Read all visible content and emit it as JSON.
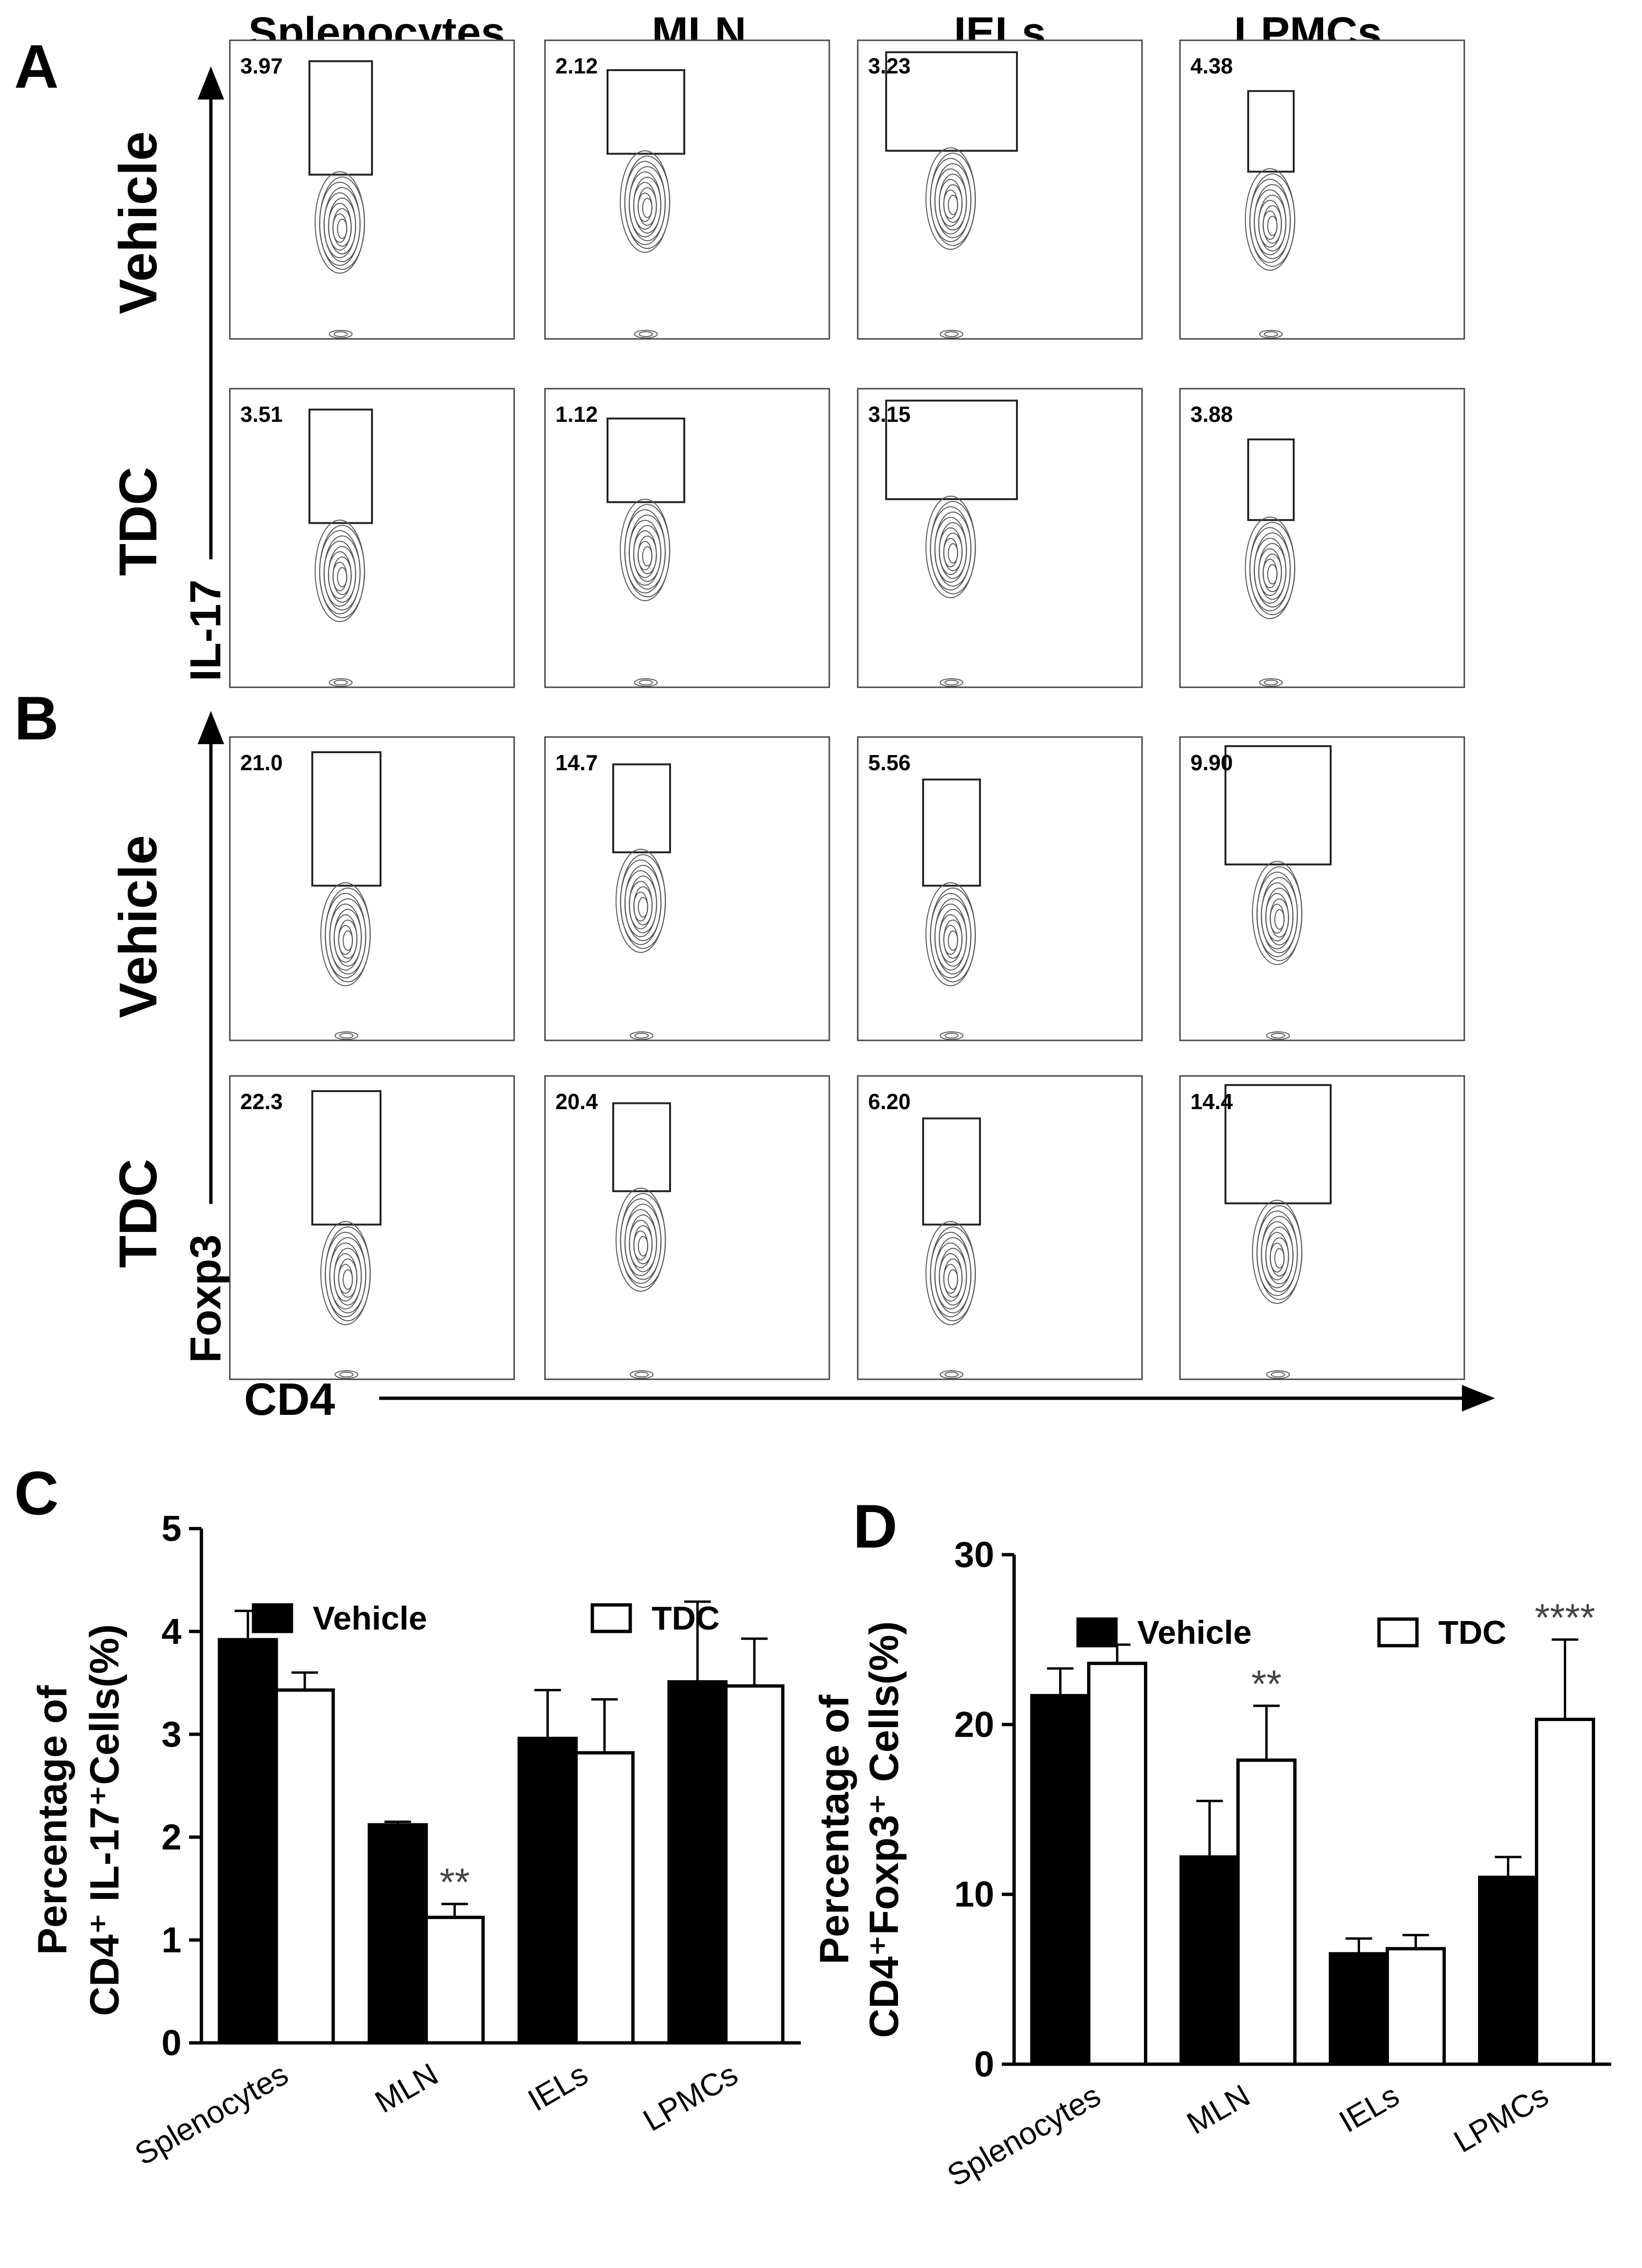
{
  "panel_letters": [
    "A",
    "B",
    "C",
    "D"
  ],
  "column_headers": [
    "Splenocytes",
    "MLN",
    "IELs",
    "LPMCs"
  ],
  "row_labels": [
    "Vehicle",
    "TDC"
  ],
  "axis_labels": {
    "il17": "IL-17",
    "foxp3": "Foxp3",
    "cd4": "CD4"
  },
  "flow_values": {
    "A": [
      [
        "3.97",
        "2.12",
        "3.23",
        "4.38"
      ],
      [
        "3.51",
        "1.12",
        "3.15",
        "3.88"
      ]
    ],
    "B": [
      [
        "21.0",
        "14.7",
        "5.56",
        "9.90"
      ],
      [
        "22.3",
        "20.4",
        "6.20",
        "14.4"
      ]
    ]
  },
  "colors": {
    "vehicle": "#000000",
    "tdc": "#ffffff",
    "contour": "#555555"
  },
  "chart_data": [
    {
      "panel": "C",
      "type": "bar",
      "title": "",
      "ylabel_line1": "Percentage of",
      "ylabel_line2": "CD4⁺ IL-17⁺Cells(%)",
      "categories": [
        "Splenocytes",
        "MLN",
        "IELs",
        "LPMCs"
      ],
      "ylim": [
        0,
        5
      ],
      "yticks": [
        0,
        1,
        2,
        3,
        4,
        5
      ],
      "series": [
        {
          "name": "Vehicle",
          "values": [
            3.92,
            2.12,
            2.96,
            3.51
          ],
          "errors": [
            0.28,
            0.03,
            0.47,
            0.78
          ]
        },
        {
          "name": "TDC",
          "values": [
            3.43,
            1.22,
            2.82,
            3.47
          ],
          "errors": [
            0.17,
            0.13,
            0.52,
            0.46
          ]
        }
      ],
      "significance": [
        "",
        "**",
        "",
        ""
      ],
      "legend": [
        "Vehicle",
        "TDC"
      ]
    },
    {
      "panel": "D",
      "type": "bar",
      "title": "",
      "ylabel_line1": "Percentage of",
      "ylabel_line2": "CD4⁺Foxp3⁺ Cells(%)",
      "categories": [
        "Splenocytes",
        "MLN",
        "IELs",
        "LPMCs"
      ],
      "ylim": [
        0,
        30
      ],
      "yticks": [
        0,
        10,
        20,
        30
      ],
      "series": [
        {
          "name": "Vehicle",
          "values": [
            21.7,
            12.2,
            6.5,
            11.0
          ],
          "errors": [
            1.6,
            3.3,
            0.9,
            1.2
          ]
        },
        {
          "name": "TDC",
          "values": [
            23.6,
            17.9,
            6.8,
            20.3
          ],
          "errors": [
            1.1,
            3.2,
            0.8,
            4.7
          ]
        }
      ],
      "significance": [
        "",
        "**",
        "",
        "****"
      ],
      "legend": [
        "Vehicle",
        "TDC"
      ]
    }
  ]
}
